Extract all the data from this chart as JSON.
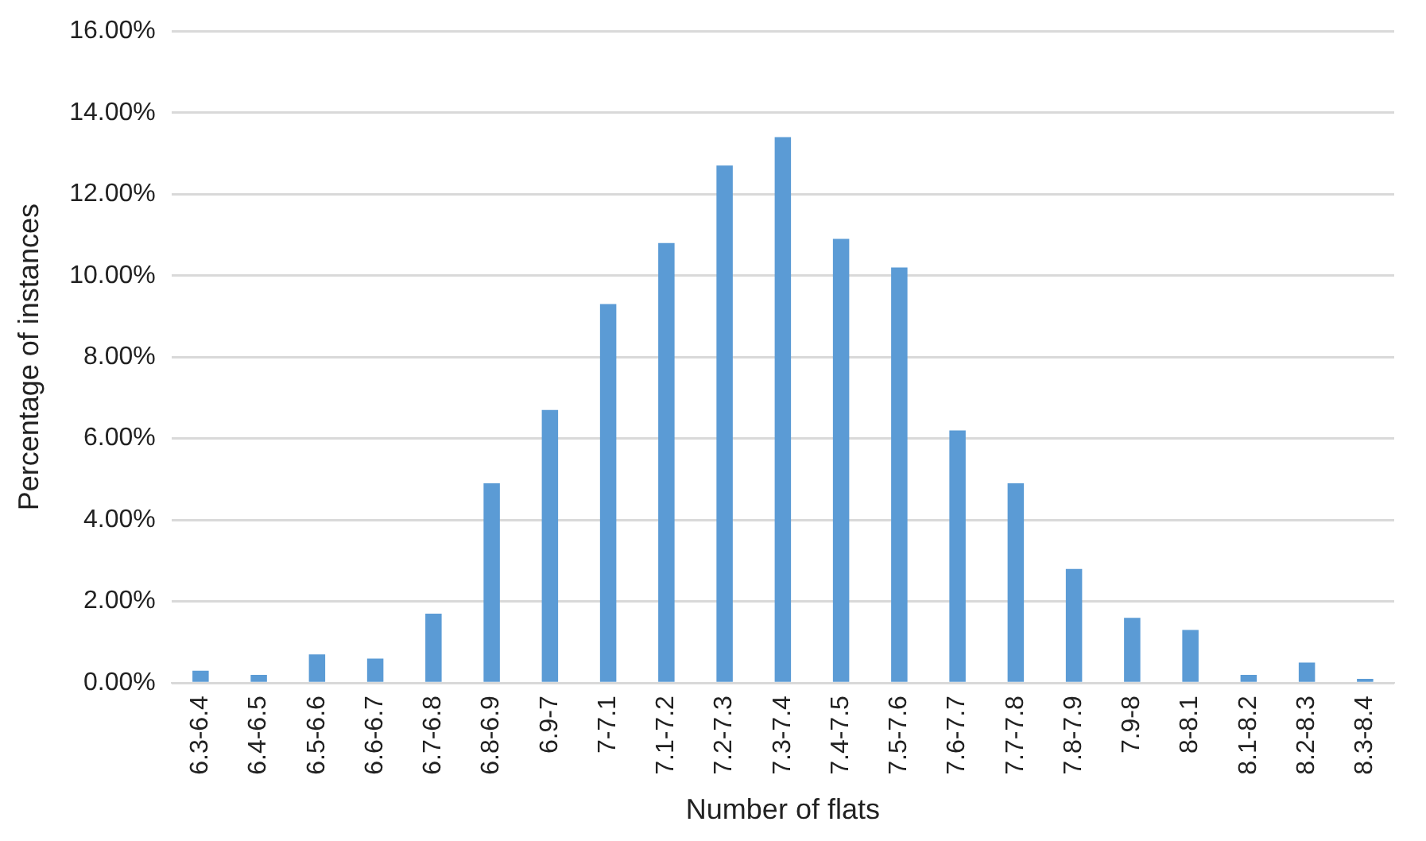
{
  "chart_data": {
    "type": "bar",
    "xlabel": "Number of flats",
    "ylabel": "Percentage of instances",
    "categories": [
      "6.3-6.4",
      "6.4-6.5",
      "6.5-6.6",
      "6.6-6.7",
      "6.7-6.8",
      "6.8-6.9",
      "6.9-7",
      "7-7.1",
      "7.1-7.2",
      "7.2-7.3",
      "7.3-7.4",
      "7.4-7.5",
      "7.5-7.6",
      "7.6-7.7",
      "7.7-7.8",
      "7.8-7.9",
      "7.9-8",
      "8-8.1",
      "8.1-8.2",
      "8.2-8.3",
      "8.3-8.4"
    ],
    "values": [
      0.3,
      0.2,
      0.7,
      0.6,
      1.7,
      4.9,
      6.7,
      9.3,
      10.8,
      12.7,
      13.4,
      10.9,
      10.2,
      6.2,
      4.9,
      2.8,
      1.6,
      1.3,
      0.2,
      0.5,
      0.1
    ],
    "color": "#5b9bd5",
    "ylim": [
      0,
      16
    ],
    "yticks": [
      {
        "value": 0,
        "label": "0.00%"
      },
      {
        "value": 2,
        "label": "2.00%"
      },
      {
        "value": 4,
        "label": "4.00%"
      },
      {
        "value": 6,
        "label": "6.00%"
      },
      {
        "value": 8,
        "label": "8.00%"
      },
      {
        "value": 10,
        "label": "10.00%"
      },
      {
        "value": 12,
        "label": "12.00%"
      },
      {
        "value": 14,
        "label": "14.00%"
      },
      {
        "value": 16,
        "label": "16.00%"
      }
    ],
    "grid": "y",
    "legend": false
  }
}
